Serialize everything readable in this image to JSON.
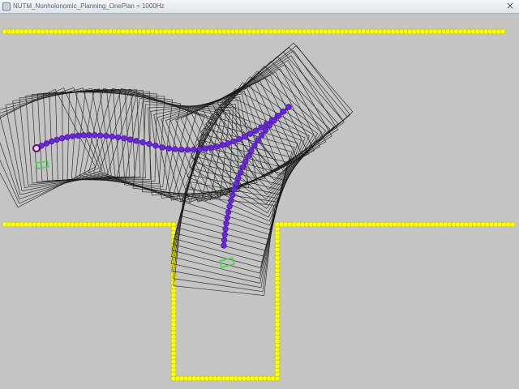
{
  "window": {
    "title": "NUTM_Nonholonomic_Planning_OnePlan = 1000Hz",
    "close_glyph": "×"
  },
  "scene": {
    "background": "#c4c4c4",
    "wall_color": "#ffff00",
    "wall_outline": "#bfbf22",
    "path_color": "#6a28d8",
    "path_node_color": "#4a1aa8",
    "footprint_color": "#1a1a1a",
    "start_marker_color": "#5a1060",
    "goal_marker_color": "#3fd850",
    "planned_trajectories": 2,
    "robot_footprint_shape": "square"
  }
}
